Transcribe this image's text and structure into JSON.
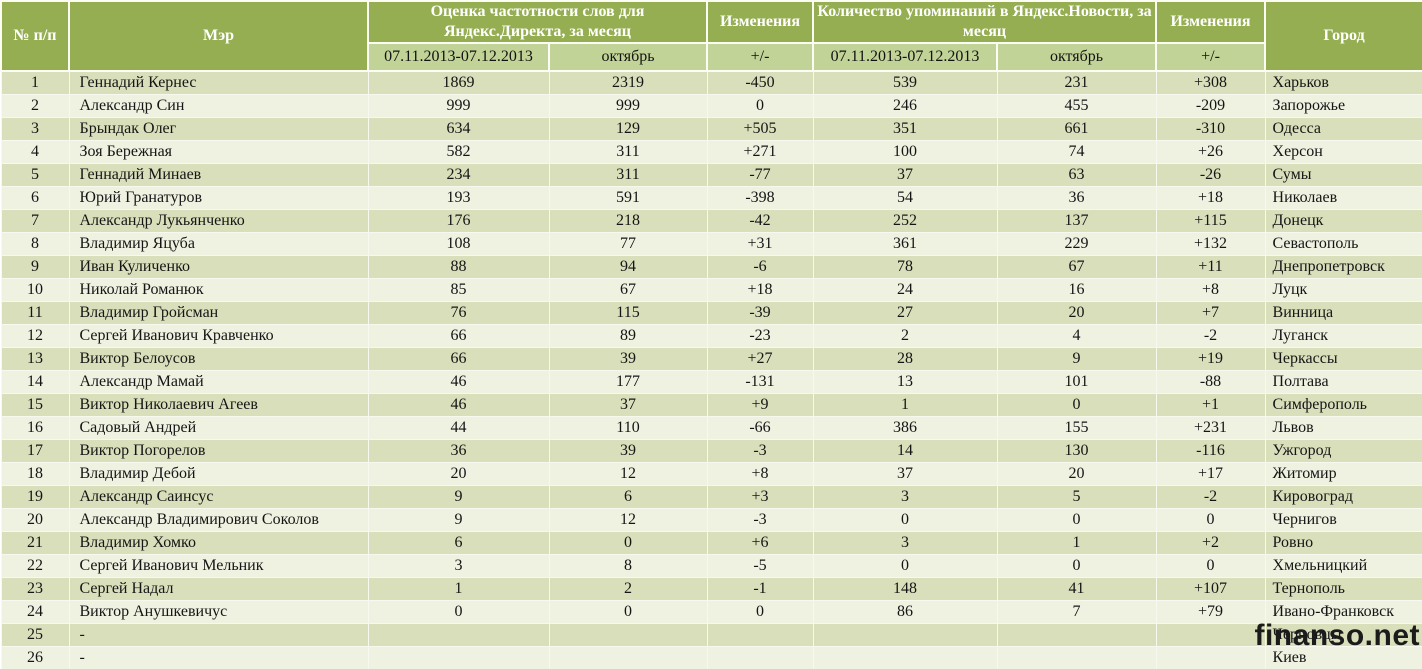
{
  "chart_data": {
    "type": "table",
    "headers": {
      "num": "№ п/п",
      "mayor": "Мэр",
      "direct_group": "Оценка частотности слов для Яндекс.Директа, за месяц",
      "changes1": "Изменения",
      "news_group": "Количество упоминаний в Яндекс.Новости, за месяц",
      "changes2": "Изменения",
      "city": "Город",
      "period1": "07.11.2013-07.12.2013",
      "october1": "октябрь",
      "plusminus1": "+/-",
      "period2": "07.11.2013-07.12.2013",
      "october2": "октябрь",
      "plusminus2": "+/-"
    },
    "rows": [
      [
        "1",
        "Геннадий Кернес",
        "1869",
        "2319",
        "-450",
        "539",
        "231",
        "+308",
        "Харьков"
      ],
      [
        "2",
        "Александр Син",
        "999",
        "999",
        "0",
        "246",
        "455",
        "-209",
        "Запорожье"
      ],
      [
        "3",
        "Брындак Олег",
        "634",
        "129",
        "+505",
        "351",
        "661",
        "-310",
        "Одесса"
      ],
      [
        "4",
        "Зоя Бережная",
        "582",
        "311",
        "+271",
        "100",
        "74",
        "+26",
        "Херсон"
      ],
      [
        "5",
        "Геннадий Минаев",
        "234",
        "311",
        "-77",
        "37",
        "63",
        "-26",
        "Сумы"
      ],
      [
        "6",
        "Юрий Гранатуров",
        "193",
        "591",
        "-398",
        "54",
        "36",
        "+18",
        "Николаев"
      ],
      [
        "7",
        "Александр Лукьянченко",
        "176",
        "218",
        "-42",
        "252",
        "137",
        "+115",
        "Донецк"
      ],
      [
        "8",
        "Владимир Яцуба",
        "108",
        "77",
        "+31",
        "361",
        "229",
        "+132",
        "Севастополь"
      ],
      [
        "9",
        "Иван Куличенко",
        "88",
        "94",
        "-6",
        "78",
        "67",
        "+11",
        "Днепропетровск"
      ],
      [
        "10",
        "Николай Романюк",
        "85",
        "67",
        "+18",
        "24",
        "16",
        "+8",
        "Луцк"
      ],
      [
        "11",
        "Владимир Гройсман",
        "76",
        "115",
        "-39",
        "27",
        "20",
        "+7",
        "Винница"
      ],
      [
        "12",
        "Сергей Иванович Кравченко",
        "66",
        "89",
        "-23",
        "2",
        "4",
        "-2",
        "Луганск"
      ],
      [
        "13",
        "Виктор Белоусов",
        "66",
        "39",
        "+27",
        "28",
        "9",
        "+19",
        "Черкассы"
      ],
      [
        "14",
        "Александр Мамай",
        "46",
        "177",
        "-131",
        "13",
        "101",
        "-88",
        "Полтава"
      ],
      [
        "15",
        "Виктор Николаевич Агеев",
        "46",
        "37",
        "+9",
        "1",
        "0",
        "+1",
        "Симферополь"
      ],
      [
        "16",
        "Садовый Андрей",
        "44",
        "110",
        "-66",
        "386",
        "155",
        "+231",
        "Львов"
      ],
      [
        "17",
        "Виктор Погорелов",
        "36",
        "39",
        "-3",
        "14",
        "130",
        "-116",
        "Ужгород"
      ],
      [
        "18",
        "Владимир Дебой",
        "20",
        "12",
        "+8",
        "37",
        "20",
        "+17",
        "Житомир"
      ],
      [
        "19",
        "Александр Саинсус",
        "9",
        "6",
        "+3",
        "3",
        "5",
        "-2",
        "Кировоград"
      ],
      [
        "20",
        "Александр Владимирович Соколов",
        "9",
        "12",
        "-3",
        "0",
        "0",
        "0",
        "Чернигов"
      ],
      [
        "21",
        "Владимир Хомко",
        "6",
        "0",
        "+6",
        "3",
        "1",
        "+2",
        "Ровно"
      ],
      [
        "22",
        "Сергей Иванович Мельник",
        "3",
        "8",
        "-5",
        "0",
        "0",
        "0",
        "Хмельницкий"
      ],
      [
        "23",
        "Сергей Надал",
        "1",
        "2",
        "-1",
        "148",
        "41",
        "+107",
        "Тернополь"
      ],
      [
        "24",
        "Виктор Анушкевичус",
        "0",
        "0",
        "0",
        "86",
        "7",
        "+79",
        "Ивано-Франковск"
      ],
      [
        "25",
        "-",
        "",
        "",
        "",
        "",
        "",
        "",
        "Черновцы"
      ],
      [
        "26",
        "-",
        "",
        "",
        "",
        "",
        "",
        "",
        "Киев"
      ]
    ]
  },
  "watermark": "finanso.net",
  "colors": {
    "header_bg": "#95ae52",
    "subheader_bg": "#c2d397",
    "row_odd_bg": "#d9dfbb",
    "row_even_bg": "#eff1e1",
    "header_text": "#ffffff",
    "body_text": "#151515",
    "watermark_text": "#1b1b1b"
  }
}
